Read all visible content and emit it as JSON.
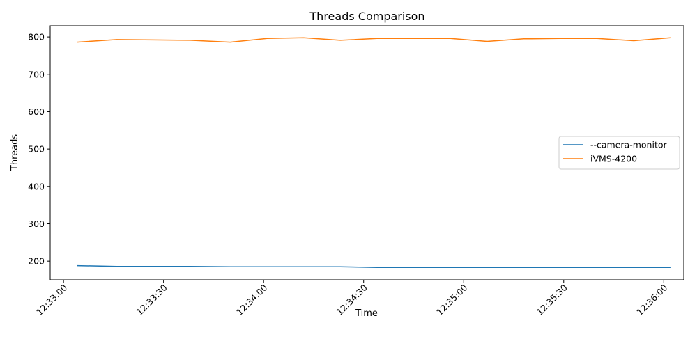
{
  "chart_data": {
    "type": "line",
    "title": "Threads Comparison",
    "xlabel": "Time",
    "ylabel": "Threads",
    "x_ticks": [
      "12:33:00",
      "12:33:30",
      "12:34:00",
      "12:34:30",
      "12:35:00",
      "12:35:30",
      "12:36:00"
    ],
    "y_ticks": [
      200,
      300,
      400,
      500,
      600,
      700,
      800
    ],
    "xlim": [
      "12:32:56",
      "12:36:06"
    ],
    "ylim": [
      150,
      830
    ],
    "x": [
      "12:33:04",
      "12:33:16",
      "12:33:27",
      "12:33:38",
      "12:33:50",
      "12:34:01",
      "12:34:12",
      "12:34:23",
      "12:34:34",
      "12:34:45",
      "12:34:56",
      "12:35:07",
      "12:35:18",
      "12:35:29",
      "12:35:40",
      "12:35:51",
      "12:36:02"
    ],
    "series": [
      {
        "name": "--camera-monitor",
        "color": "#1f77b4",
        "values": [
          188,
          186,
          186,
          186,
          185,
          185,
          185,
          185,
          183,
          183,
          183,
          183,
          183,
          183,
          183,
          183,
          183
        ]
      },
      {
        "name": "iVMS-4200",
        "color": "#ff7f0e",
        "values": [
          786,
          793,
          792,
          791,
          786,
          796,
          798,
          791,
          796,
          796,
          796,
          788,
          795,
          796,
          796,
          790,
          798
        ]
      }
    ],
    "grid": false,
    "legend_position": "center-right"
  }
}
